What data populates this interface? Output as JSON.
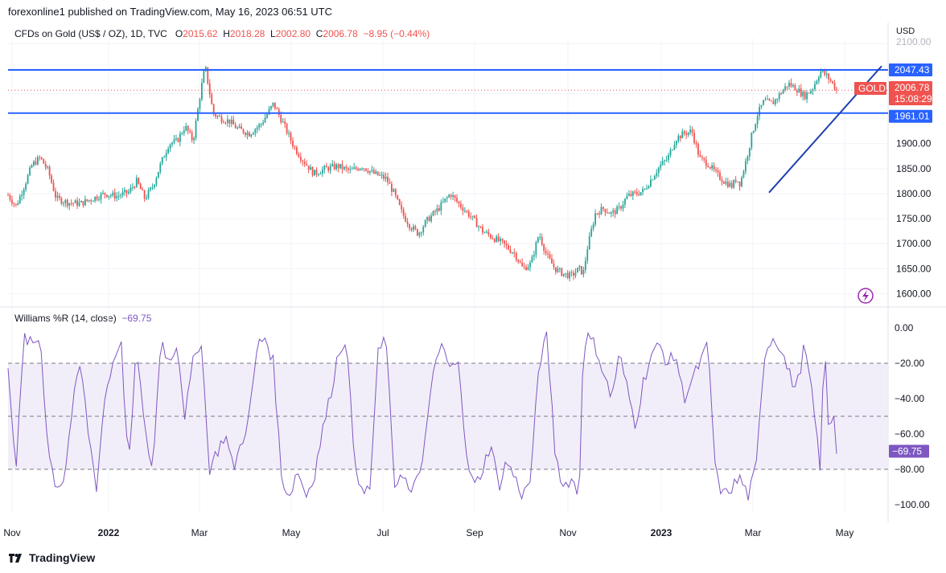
{
  "header": {
    "published_text": "forexonline1 published on TradingView.com, May 16, 2023 06:51 UTC"
  },
  "legend": {
    "symbol": "CFDs on Gold (US$ / OZ), 1D, TVC",
    "open_label": "O",
    "open": "2015.62",
    "high_label": "H",
    "high": "2018.28",
    "low_label": "L",
    "low": "2002.80",
    "close_label": "C",
    "close": "2006.78",
    "change": "−8.95 (−0.44%)"
  },
  "indicator": {
    "name": "Williams %R (14, close)",
    "value": "−69.75",
    "badge": "−69.75"
  },
  "price_axis": {
    "currency": "USD",
    "ticks": [
      "2100.00",
      "1900.00",
      "1850.00",
      "1800.00",
      "1750.00",
      "1700.00",
      "1650.00",
      "1600.00"
    ],
    "badges": {
      "upper_line": "2047.43",
      "gold_label": "GOLD",
      "last_price": "2006.78",
      "countdown": "15:08:29",
      "lower_line": "1961.01"
    }
  },
  "wr_axis": {
    "ticks": [
      "0.00",
      "−20.00",
      "−40.00",
      "−60.00",
      "−80.00",
      "−100.00"
    ]
  },
  "time_axis": {
    "labels": [
      "Nov",
      "2022",
      "Mar",
      "May",
      "Jul",
      "Sep",
      "Nov",
      "2023",
      "Mar",
      "May"
    ]
  },
  "footer": {
    "brand": "TradingView"
  },
  "colors": {
    "up": "#26a69a",
    "down": "#ef5350",
    "hline": "#2962ff",
    "trend": "#1e40af",
    "wr_line": "#7e57c2",
    "wr_band": "#ede7f6",
    "badge_blue": "#2962ff",
    "badge_red": "#ef5350",
    "grid": "#f0f3fa"
  },
  "chart_data": {
    "type": "candlestick",
    "symbol": "GOLD",
    "timeframe": "1D",
    "ylim": [
      1575,
      2120
    ],
    "levels": {
      "resistance": 2047.43,
      "support": 1961.01,
      "last": 2006.78
    },
    "trendline": [
      [
        0.802,
        1802
      ],
      [
        0.923,
        2055
      ]
    ],
    "price_path": [
      [
        0.0,
        1797
      ],
      [
        0.01,
        1775
      ],
      [
        0.02,
        1815
      ],
      [
        0.03,
        1858
      ],
      [
        0.04,
        1872
      ],
      [
        0.05,
        1845
      ],
      [
        0.06,
        1790
      ],
      [
        0.075,
        1782
      ],
      [
        0.09,
        1780
      ],
      [
        0.105,
        1790
      ],
      [
        0.12,
        1800
      ],
      [
        0.135,
        1795
      ],
      [
        0.15,
        1803
      ],
      [
        0.16,
        1825
      ],
      [
        0.17,
        1790
      ],
      [
        0.18,
        1815
      ],
      [
        0.19,
        1860
      ],
      [
        0.2,
        1900
      ],
      [
        0.21,
        1905
      ],
      [
        0.22,
        1935
      ],
      [
        0.23,
        1905
      ],
      [
        0.24,
        2010
      ],
      [
        0.245,
        2055
      ],
      [
        0.255,
        1960
      ],
      [
        0.265,
        1950
      ],
      [
        0.275,
        1945
      ],
      [
        0.285,
        1930
      ],
      [
        0.3,
        1920
      ],
      [
        0.315,
        1940
      ],
      [
        0.33,
        1980
      ],
      [
        0.345,
        1930
      ],
      [
        0.355,
        1895
      ],
      [
        0.365,
        1870
      ],
      [
        0.38,
        1840
      ],
      [
        0.395,
        1850
      ],
      [
        0.41,
        1855
      ],
      [
        0.425,
        1845
      ],
      [
        0.44,
        1855
      ],
      [
        0.455,
        1840
      ],
      [
        0.47,
        1830
      ],
      [
        0.48,
        1800
      ],
      [
        0.49,
        1760
      ],
      [
        0.5,
        1735
      ],
      [
        0.51,
        1720
      ],
      [
        0.52,
        1745
      ],
      [
        0.535,
        1770
      ],
      [
        0.55,
        1800
      ],
      [
        0.56,
        1780
      ],
      [
        0.575,
        1755
      ],
      [
        0.59,
        1725
      ],
      [
        0.6,
        1715
      ],
      [
        0.615,
        1700
      ],
      [
        0.63,
        1680
      ],
      [
        0.64,
        1650
      ],
      [
        0.65,
        1660
      ],
      [
        0.66,
        1720
      ],
      [
        0.67,
        1675
      ],
      [
        0.68,
        1650
      ],
      [
        0.69,
        1640
      ],
      [
        0.7,
        1635
      ],
      [
        0.71,
        1650
      ],
      [
        0.715,
        1640
      ],
      [
        0.72,
        1690
      ],
      [
        0.73,
        1760
      ],
      [
        0.74,
        1770
      ],
      [
        0.75,
        1760
      ],
      [
        0.76,
        1770
      ],
      [
        0.77,
        1795
      ],
      [
        0.78,
        1800
      ],
      [
        0.79,
        1805
      ],
      [
        0.8,
        1830
      ],
      [
        0.81,
        1855
      ],
      [
        0.82,
        1870
      ],
      [
        0.83,
        1910
      ],
      [
        0.84,
        1920
      ],
      [
        0.85,
        1925
      ],
      [
        0.86,
        1870
      ],
      [
        0.87,
        1860
      ],
      [
        0.88,
        1840
      ],
      [
        0.89,
        1825
      ],
      [
        0.9,
        1815
      ],
      [
        0.905,
        1830
      ],
      [
        0.91,
        1820
      ],
      [
        0.918,
        1870
      ],
      [
        0.925,
        1920
      ],
      [
        0.932,
        1960
      ],
      [
        0.94,
        1985
      ],
      [
        0.95,
        1980
      ],
      [
        0.96,
        2000
      ],
      [
        0.97,
        2020
      ],
      [
        0.98,
        2010
      ],
      [
        0.99,
        1995
      ],
      [
        1.0,
        2010
      ],
      [
        1.01,
        2045
      ],
      [
        1.018,
        2035
      ],
      [
        1.026,
        2018
      ],
      [
        1.03,
        2007
      ]
    ],
    "wr_path": [
      [
        0.0,
        -20
      ],
      [
        0.01,
        -80
      ],
      [
        0.02,
        -5
      ],
      [
        0.03,
        -10
      ],
      [
        0.04,
        -5
      ],
      [
        0.05,
        -70
      ],
      [
        0.06,
        -90
      ],
      [
        0.07,
        -85
      ],
      [
        0.08,
        -45
      ],
      [
        0.09,
        -20
      ],
      [
        0.1,
        -60
      ],
      [
        0.11,
        -90
      ],
      [
        0.12,
        -40
      ],
      [
        0.13,
        -20
      ],
      [
        0.14,
        -5
      ],
      [
        0.15,
        -80
      ],
      [
        0.16,
        -10
      ],
      [
        0.17,
        -60
      ],
      [
        0.18,
        -80
      ],
      [
        0.19,
        -5
      ],
      [
        0.2,
        -20
      ],
      [
        0.21,
        -8
      ],
      [
        0.22,
        -50
      ],
      [
        0.23,
        -20
      ],
      [
        0.24,
        -5
      ],
      [
        0.25,
        -80
      ],
      [
        0.26,
        -70
      ],
      [
        0.27,
        -60
      ],
      [
        0.28,
        -80
      ],
      [
        0.29,
        -65
      ],
      [
        0.3,
        -50
      ],
      [
        0.31,
        -10
      ],
      [
        0.32,
        -5
      ],
      [
        0.33,
        -20
      ],
      [
        0.34,
        -85
      ],
      [
        0.35,
        -95
      ],
      [
        0.36,
        -80
      ],
      [
        0.37,
        -95
      ],
      [
        0.38,
        -85
      ],
      [
        0.39,
        -60
      ],
      [
        0.4,
        -40
      ],
      [
        0.41,
        -15
      ],
      [
        0.42,
        -5
      ],
      [
        0.43,
        -70
      ],
      [
        0.44,
        -95
      ],
      [
        0.45,
        -90
      ],
      [
        0.46,
        -15
      ],
      [
        0.47,
        -5
      ],
      [
        0.48,
        -90
      ],
      [
        0.49,
        -80
      ],
      [
        0.5,
        -95
      ],
      [
        0.51,
        -85
      ],
      [
        0.52,
        -60
      ],
      [
        0.53,
        -20
      ],
      [
        0.54,
        -10
      ],
      [
        0.55,
        -25
      ],
      [
        0.56,
        -15
      ],
      [
        0.57,
        -75
      ],
      [
        0.58,
        -90
      ],
      [
        0.59,
        -80
      ],
      [
        0.6,
        -65
      ],
      [
        0.61,
        -90
      ],
      [
        0.62,
        -75
      ],
      [
        0.63,
        -85
      ],
      [
        0.64,
        -95
      ],
      [
        0.65,
        -85
      ],
      [
        0.66,
        -20
      ],
      [
        0.67,
        -5
      ],
      [
        0.68,
        -70
      ],
      [
        0.69,
        -90
      ],
      [
        0.7,
        -85
      ],
      [
        0.71,
        -95
      ],
      [
        0.715,
        -10
      ],
      [
        0.72,
        -5
      ],
      [
        0.73,
        -10
      ],
      [
        0.74,
        -25
      ],
      [
        0.75,
        -40
      ],
      [
        0.76,
        -15
      ],
      [
        0.77,
        -35
      ],
      [
        0.78,
        -55
      ],
      [
        0.79,
        -30
      ],
      [
        0.8,
        -15
      ],
      [
        0.81,
        -10
      ],
      [
        0.82,
        -20
      ],
      [
        0.83,
        -15
      ],
      [
        0.84,
        -40
      ],
      [
        0.85,
        -30
      ],
      [
        0.86,
        -20
      ],
      [
        0.87,
        -10
      ],
      [
        0.88,
        -85
      ],
      [
        0.89,
        -95
      ],
      [
        0.9,
        -90
      ],
      [
        0.91,
        -85
      ],
      [
        0.92,
        -95
      ],
      [
        0.93,
        -80
      ],
      [
        0.94,
        -15
      ],
      [
        0.95,
        -5
      ],
      [
        0.96,
        -10
      ],
      [
        0.97,
        -25
      ],
      [
        0.98,
        -35
      ],
      [
        0.99,
        -10
      ],
      [
        1.0,
        -40
      ],
      [
        1.01,
        -80
      ],
      [
        1.015,
        -5
      ],
      [
        1.02,
        -60
      ],
      [
        1.026,
        -45
      ],
      [
        1.03,
        -69.75
      ]
    ]
  }
}
